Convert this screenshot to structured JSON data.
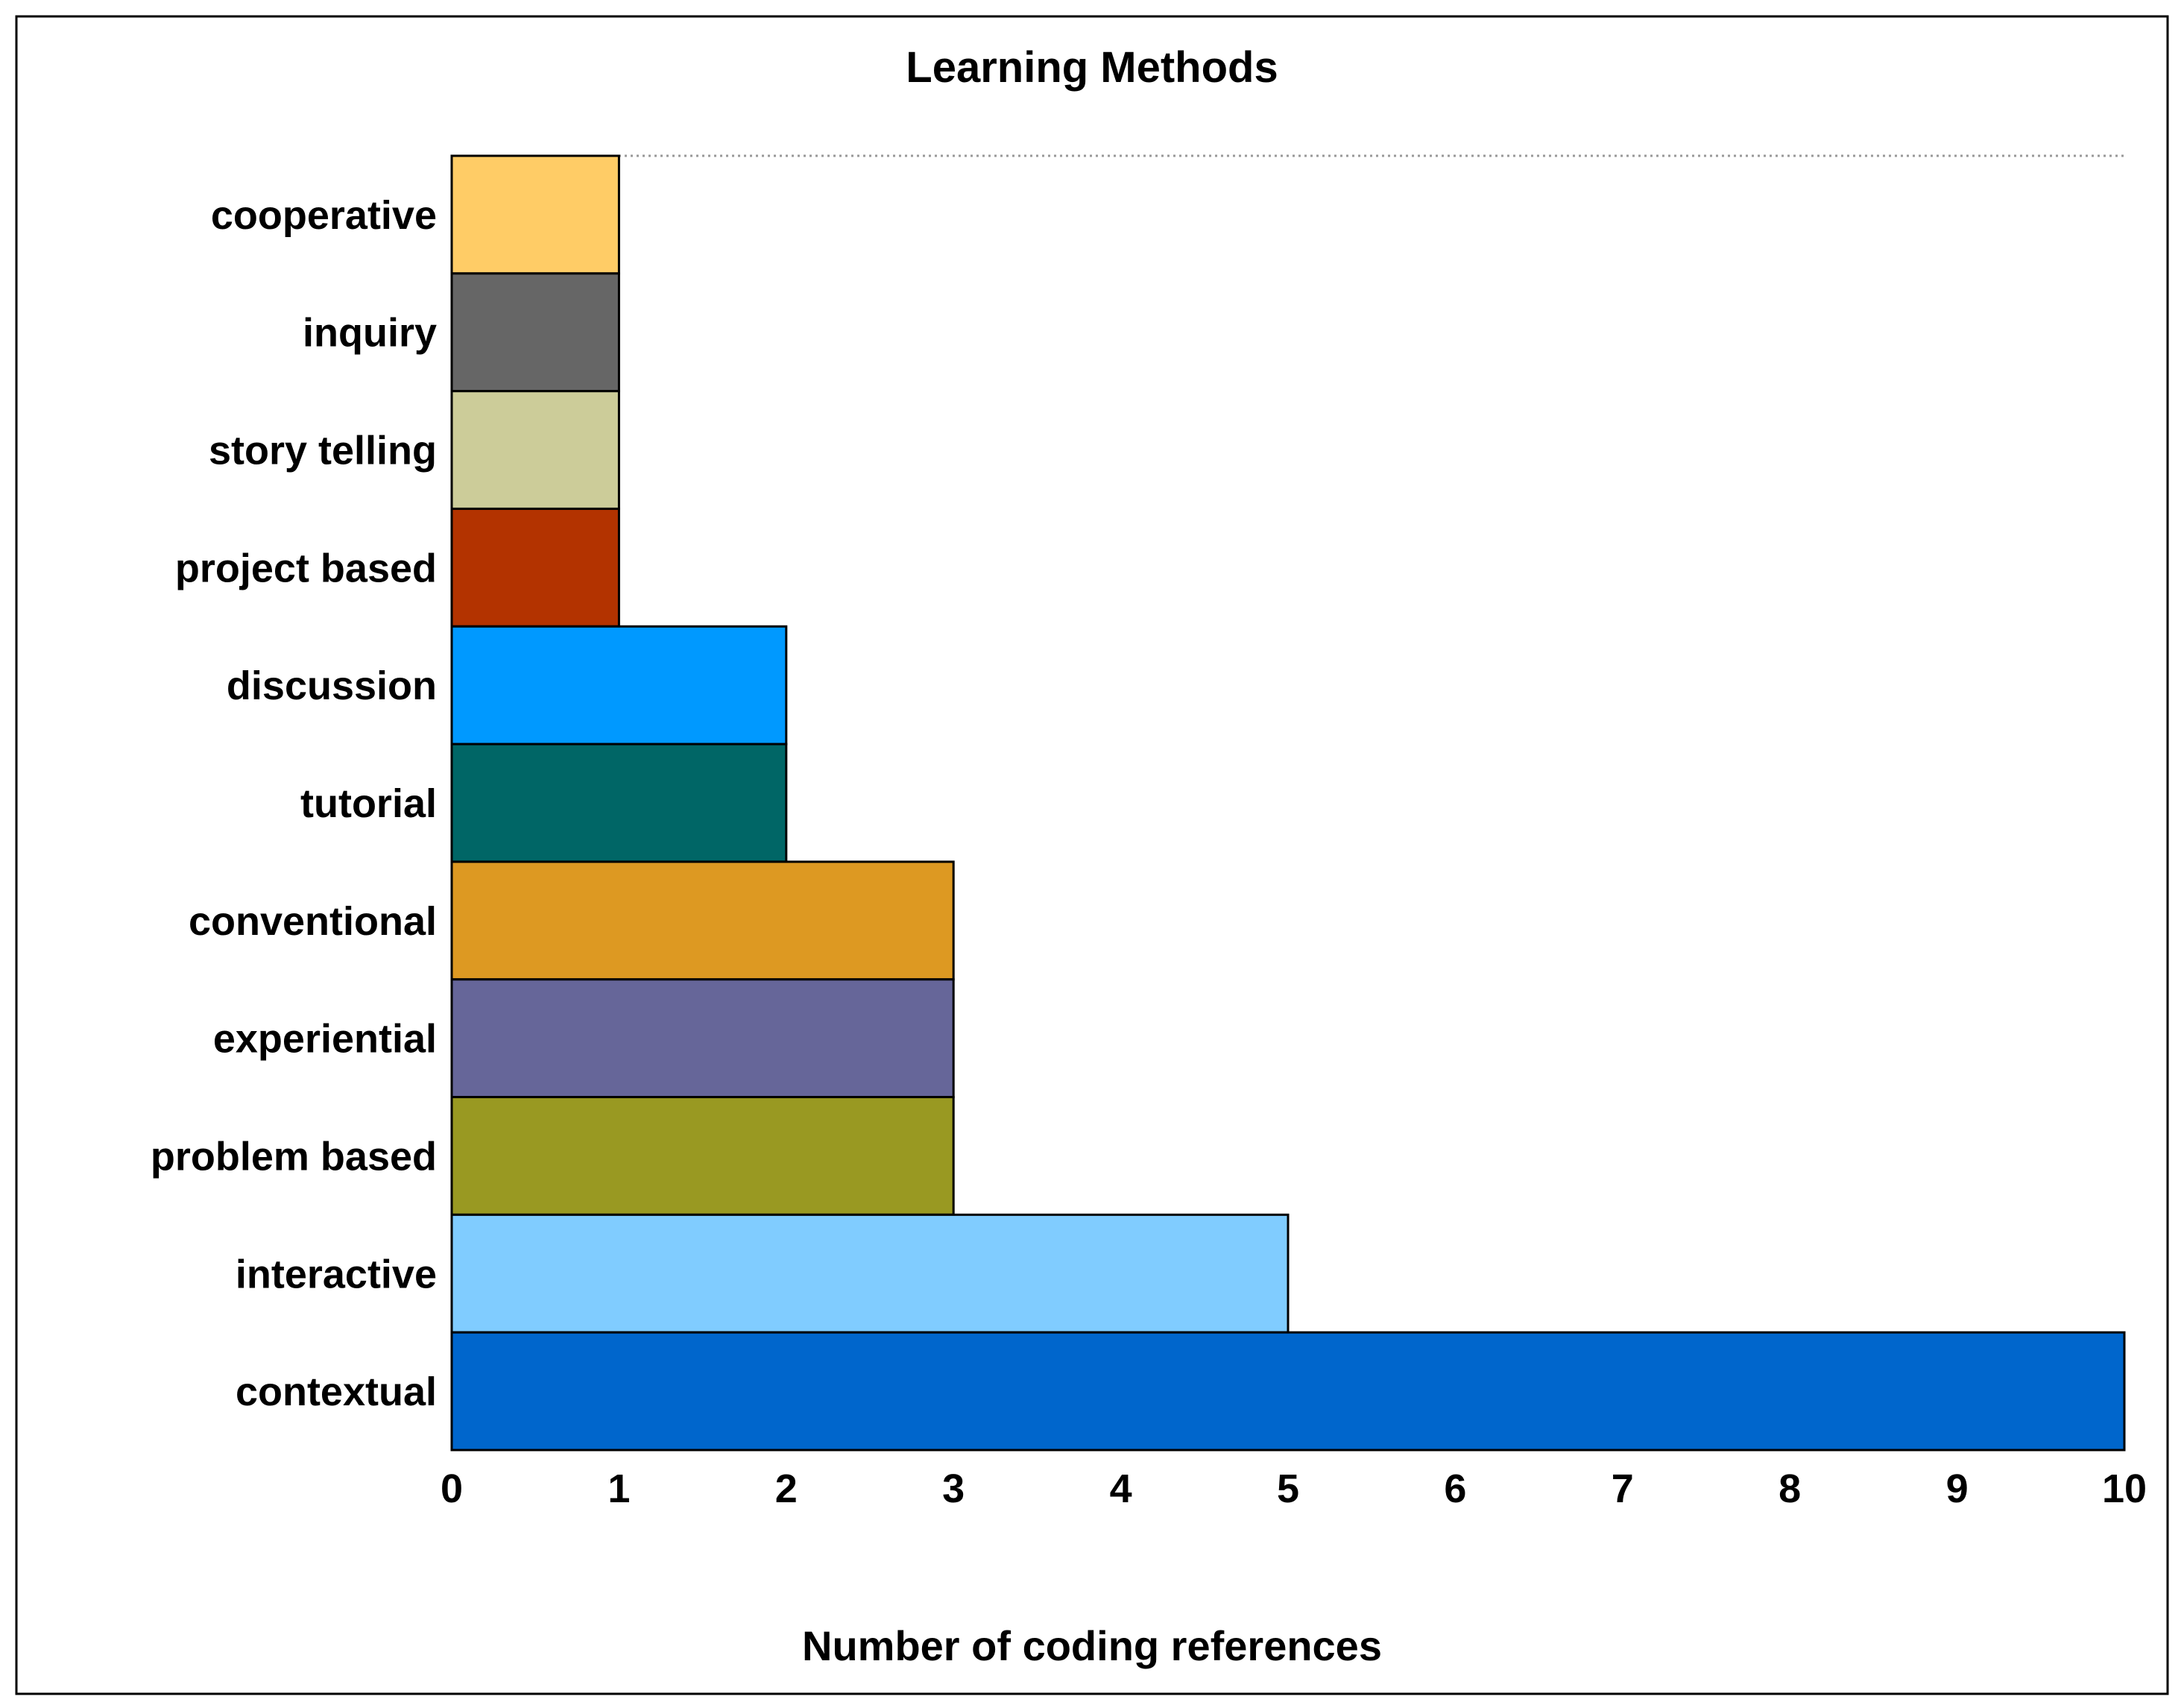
{
  "chart_data": {
    "type": "bar",
    "orientation": "horizontal",
    "title": "Learning Methods",
    "xlabel": "Number of coding references",
    "ylabel": "",
    "xlim": [
      0,
      10
    ],
    "xticks": [
      "0",
      "1",
      "2",
      "3",
      "4",
      "5",
      "6",
      "7",
      "8",
      "9",
      "10"
    ],
    "grid": "dotted line at top of plot only",
    "legend": "none",
    "categories": [
      "cooperative",
      "inquiry",
      "story telling",
      "project based",
      "discussion",
      "tutorial",
      "conventional",
      "experiential",
      "problem based",
      "interactive",
      "contextual"
    ],
    "values": [
      1,
      1,
      1,
      1,
      2,
      2,
      3,
      3,
      3,
      5,
      10
    ],
    "colors": [
      "#FFCC66",
      "#666666",
      "#CCCC99",
      "#B33300",
      "#0099FF",
      "#006666",
      "#DD9922",
      "#666699",
      "#999922",
      "#80CCFF",
      "#0066CC"
    ]
  }
}
